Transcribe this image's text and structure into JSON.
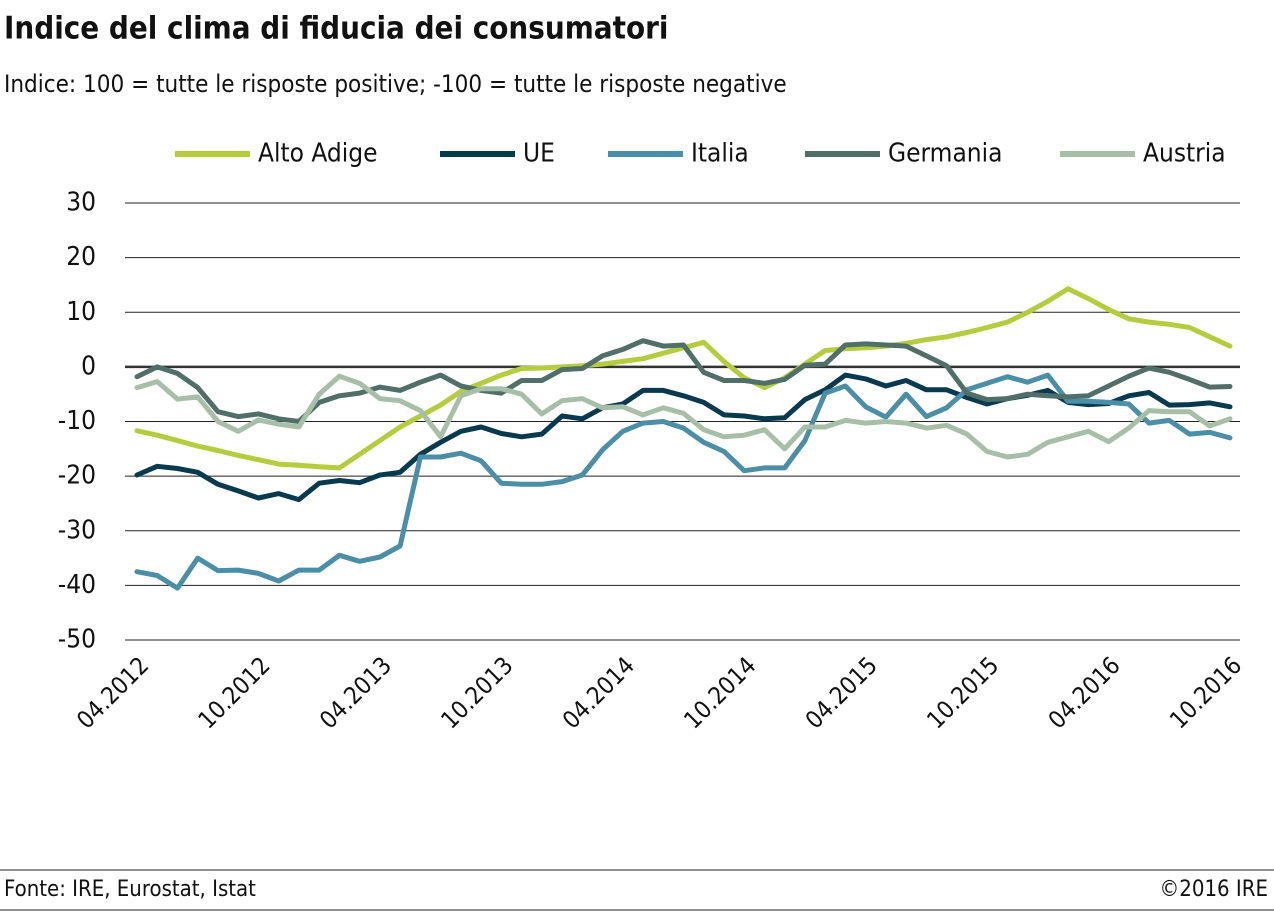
{
  "chart_data": {
    "type": "line",
    "title": "Indice del clima di fiducia dei consumatori",
    "subtitle": "Indice: 100 = tutte le risposte positive; -100 =  tutte le risposte negative",
    "source": "Fonte:  IRE, Eurostat, Istat",
    "copyright": "©2016 IRE",
    "categories": [
      "04.2012",
      null,
      null,
      null,
      null,
      null,
      "10.2012",
      null,
      null,
      null,
      null,
      null,
      "04.2013",
      null,
      null,
      null,
      null,
      null,
      "10.2013",
      null,
      null,
      null,
      null,
      null,
      "04.2014",
      null,
      null,
      null,
      null,
      null,
      "10.2014",
      null,
      null,
      null,
      null,
      null,
      "04.2015",
      null,
      null,
      null,
      null,
      null,
      "10.2015",
      null,
      null,
      null,
      null,
      null,
      "04.2016",
      null,
      null,
      null,
      null,
      null,
      "10.2016"
    ],
    "series": [
      {
        "name": "Alto Adige",
        "color": "#b5cc3f",
        "values": [
          -11.7,
          -12.5,
          -13.5,
          -14.5,
          -15.3,
          -16.2,
          -17,
          -17.8,
          -18,
          -18.3,
          -18.5,
          -16,
          -13.5,
          -11,
          -9,
          -7,
          -4.5,
          -3,
          -1.5,
          -0.3,
          -0.2,
          0,
          0.2,
          0.5,
          1,
          1.5,
          2.5,
          3.5,
          4.5,
          1,
          -2,
          -3.8,
          -2,
          0.5,
          3,
          3.3,
          3.5,
          3.8,
          4.3,
          5,
          5.5,
          6.3,
          7.2,
          8.2,
          10,
          12,
          14.3,
          12.5,
          10.5,
          8.8,
          8.2,
          7.8,
          7.2,
          5.5,
          3.8
        ]
      },
      {
        "name": "UE",
        "color": "#083a4f",
        "values": [
          -19.8,
          -18.2,
          -18.6,
          -19.3,
          -21.5,
          -22.7,
          -24,
          -23.2,
          -24.3,
          -21.3,
          -20.8,
          -21.2,
          -19.8,
          -19.3,
          -16,
          -13.8,
          -11.8,
          -11,
          -12.2,
          -12.8,
          -12.3,
          -9,
          -9.5,
          -7.5,
          -6.8,
          -4.3,
          -4.3,
          -5.3,
          -6.5,
          -8.8,
          -9,
          -9.5,
          -9.3,
          -6,
          -4.2,
          -1.5,
          -2.2,
          -3.5,
          -2.5,
          -4.2,
          -4.2,
          -5.6,
          -6.8,
          -5.8,
          -5.2,
          -4.3,
          -6.5,
          -6.9,
          -6.7,
          -5.3,
          -4.7,
          -7,
          -6.9,
          -6.6,
          -7.3
        ]
      },
      {
        "name": "Italia",
        "color": "#4b8ea8",
        "values": [
          -37.5,
          -38.2,
          -40.5,
          -35,
          -37.3,
          -37.2,
          -37.8,
          -39.2,
          -37.2,
          -37.2,
          -34.5,
          -35.6,
          -34.8,
          -32.8,
          -16.5,
          -16.5,
          -15.8,
          -17.2,
          -21.3,
          -21.5,
          -21.5,
          -21,
          -19.8,
          -15.2,
          -11.8,
          -10.3,
          -10,
          -11.2,
          -13.8,
          -15.5,
          -19,
          -18.5,
          -18.5,
          -13.5,
          -4.8,
          -3.5,
          -7.3,
          -9.2,
          -5,
          -9.1,
          -7.5,
          -4.2,
          -3,
          -1.8,
          -2.8,
          -1.5,
          -6.3,
          -6.3,
          -6.5,
          -6.8,
          -10.3,
          -9.8,
          -12.3,
          -12,
          -13
        ]
      },
      {
        "name": "Germania",
        "color": "#4f6f68",
        "values": [
          -1.8,
          0,
          -1.2,
          -3.8,
          -8.2,
          -9.1,
          -8.6,
          -9.5,
          -10,
          -6.5,
          -5.3,
          -4.8,
          -3.7,
          -4.3,
          -2.8,
          -1.5,
          -3.5,
          -4.3,
          -4.8,
          -2.5,
          -2.5,
          -0.5,
          -0.3,
          2,
          3.2,
          4.8,
          3.8,
          4,
          -1,
          -2.5,
          -2.5,
          -3,
          -2.3,
          0.3,
          0.5,
          4,
          4.2,
          4,
          3.8,
          2,
          0.2,
          -4.8,
          -6,
          -5.8,
          -5,
          -5.3,
          -5.5,
          -5.3,
          -3.5,
          -1.7,
          -0.2,
          -1,
          -2.3,
          -3.7,
          -3.6
        ]
      },
      {
        "name": "Austria",
        "color": "#a7bfa7",
        "values": [
          -3.8,
          -2.7,
          -5.9,
          -5.5,
          -10,
          -11.8,
          -9.7,
          -10.5,
          -11,
          -5,
          -1.7,
          -3,
          -5.8,
          -6.2,
          -8,
          -12.8,
          -5.3,
          -4,
          -4,
          -5,
          -8.6,
          -6.2,
          -5.8,
          -7.5,
          -7.3,
          -8.8,
          -7.5,
          -8.5,
          -11.5,
          -12.8,
          -12.5,
          -11.5,
          -15,
          -11,
          -11,
          -9.8,
          -10.3,
          -10,
          -10.3,
          -11.2,
          -10.7,
          -12.3,
          -15.5,
          -16.5,
          -16,
          -13.8,
          -12.8,
          -11.8,
          -13.7,
          -11.2,
          -8,
          -8.2,
          -8.2,
          -10.8,
          -9.5
        ]
      }
    ],
    "ylim": [
      -50,
      30
    ],
    "yticks": [
      -50,
      -40,
      -30,
      -20,
      -10,
      0,
      10,
      20,
      30
    ],
    "grid": true,
    "legend": "top"
  }
}
